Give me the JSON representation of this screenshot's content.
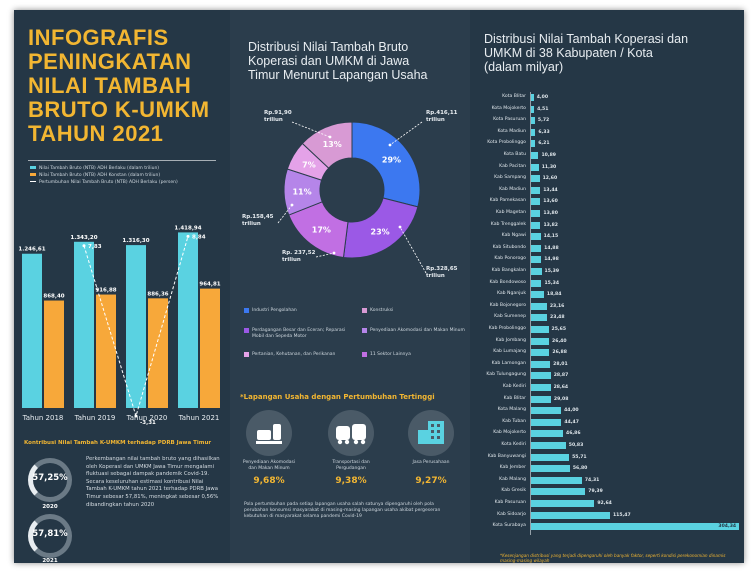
{
  "infographic": {
    "title_lines": [
      "INFOGRAFIS",
      "PENINGKATAN",
      "NILAI TAMBAH",
      "BRUTO K-UMKM",
      "TAHUN 2021"
    ],
    "colors": {
      "navy": "#253746",
      "gold": "#f2b632",
      "cyan": "#5ad2e1",
      "orange": "#f7a83a",
      "white": "#ffffff"
    }
  },
  "left_chart": {
    "legend": [
      "Nilai Tambah Bruto (NTB) ADH Berlaku (dalam triliun)",
      "Nilai Tambah Bruto (NTB) ADH Konstan (dalam triliun)",
      "Pertumbuhan Nilai Tambah Bruto (NTB) ADH Berlaku (persen)"
    ],
    "pdrb_title": "Kontribusi Nilai Tambah K-UMKM terhadap PDRB Jawa Timur",
    "rings": [
      {
        "value": "57,25%",
        "year": "2020"
      },
      {
        "value": "57,81%",
        "year": "2021"
      }
    ],
    "paragraph": "Perkembangan nilai tambah bruto yang dihasilkan oleh Koperasi dan UMKM Jawa Timur mengalami fluktuasi sebagai dampak pandemik Covid-19. Secara keseluruhan estimasi kontribusi Nilai Tambah K-UMKM tahun 2021 terhadap PDRB Jawa Timur sebesar 57,81%, meningkat sebesar 0,56% dibandingkan tahun 2020"
  },
  "donut": {
    "title_lines": [
      "Distribusi Nilai Tambah Bruto",
      "Koperasi dan UMKM di Jawa",
      "Timur Menurut Lapangan Usaha"
    ],
    "callouts": {
      "c1": [
        "Rp.91,90",
        "triliun"
      ],
      "c2": [
        "Rp.416,11",
        "triliun"
      ],
      "c3": [
        "Rp.158,45",
        "triliun"
      ],
      "c4": [
        "Rp. 237,52",
        "triliun"
      ],
      "c5": [
        "Rp.328,65",
        "triliun"
      ]
    },
    "legend": [
      "Industri Pengolahan",
      "Konstruksi",
      "Perdagangan Besar dan Eceran; Reparasi Mobil dan Sepeda Motor",
      "Penyediaan Akomodasi dan Makan Minum",
      "Pertanian, Kehutanan, dan Perikanan",
      "11 Sektor Lainnya"
    ],
    "sector_title": "*Lapangan Usaha dengan Pertumbuhan Tertinggi",
    "sectors": [
      {
        "name": "Penyediaan Akomodasi dan Makan Minum",
        "value": "9,68%"
      },
      {
        "name": "Transportasi dan Pergudangan",
        "value": "9,38%"
      },
      {
        "name": "Jasa Perusahaan",
        "value": "9,27%"
      }
    ],
    "note": "Pola pertumbuhan pada setiap lapangan usaha salah satunya dipengaruhi oleh pola perubahan konsumsi masyarakat di masing-masing lapangan usaha akibat pergeseran kebutuhan di masyarakat selama pandemi Covid-19"
  },
  "right_panel": {
    "title_lines": [
      "Distribusi Nilai Tambah Koperasi dan",
      "UMKM di 38 Kabupaten / Kota",
      "(dalam milyar)"
    ],
    "footnote": "*Kesenjangan distribusi yang terjadi dipengaruhi oleh banyak faktor, seperti kondisi perekonomian dinamis masing-masing wilayah"
  },
  "chart_data": [
    {
      "type": "bar",
      "title": "",
      "categories": [
        "Tahun 2018",
        "Tahun 2019",
        "Tahun 2020",
        "Tahun 2021"
      ],
      "series": [
        {
          "name": "Nilai Tambah Bruto (NTB) ADH Berlaku (dalam triliun)",
          "values": [
            1246.61,
            1343.2,
            1316.3,
            1418.94
          ],
          "labels": [
            "1.246,61",
            "1.343,20",
            "1.316,30",
            "1.418,94"
          ],
          "color": "#5ad2e1"
        },
        {
          "name": "Nilai Tambah Bruto (NTB) ADH Konstan (dalam triliun)",
          "values": [
            868.4,
            916.88,
            886.36,
            964.81
          ],
          "labels": [
            "868,40",
            "916,88",
            "886,36",
            "964,81"
          ],
          "color": "#f7a83a"
        }
      ],
      "line_series": {
        "name": "Pertumbuhan Nilai Tambah Bruto (NTB) ADH Berlaku (persen)",
        "labels": [
          "",
          "7,83",
          "-3,31",
          "8,84"
        ],
        "values": [
          null,
          7.83,
          -3.31,
          8.84
        ]
      },
      "ylim": [
        0,
        1600
      ]
    },
    {
      "type": "pie",
      "title": "Distribusi Nilai Tambah Bruto Koperasi dan UMKM di Jawa Timur Menurut Lapangan Usaha",
      "labels": [
        "Industri Pengolahan",
        "Konstruksi",
        "Perdagangan Besar dan Eceran; Reparasi Mobil dan Sepeda Motor",
        "Penyediaan Akomodasi dan Makan Minum",
        "Pertanian, Kehutanan, dan Perikanan",
        "11 Sektor Lainnya"
      ],
      "values": [
        29,
        23,
        17,
        11,
        7,
        13
      ],
      "value_labels": [
        "29%",
        "23%",
        "17%",
        "11%",
        "7%",
        "13%"
      ],
      "colors": [
        "#3c78f0",
        "#9b59e6",
        "#c16fe3",
        "#b585e9",
        "#e4a2e8",
        "#d89ad4"
      ],
      "donut": true
    },
    {
      "type": "bar",
      "orientation": "horizontal",
      "title": "Distribusi Nilai Tambah Koperasi dan UMKM di 38 Kabupaten / Kota (dalam milyar)",
      "categories": [
        "Kota Blitar",
        "Kota Mojokerto",
        "Kota Pasuruan",
        "Kota Madiun",
        "Kota Probolinggo",
        "Kota Batu",
        "Kab Pacitan",
        "Kab Sampang",
        "Kab Madiun",
        "Kab Pamekasan",
        "Kab Magetan",
        "Kab Trenggalek",
        "Kab Ngawi",
        "Kab Situbondo",
        "Kab Ponorogo",
        "Kab Bangkalan",
        "Kab Bondowoso",
        "Kab Nganjuk",
        "Kab Bojonegoro",
        "Kab Sumenep",
        "Kab Probolinggo",
        "Kab Jombang",
        "Kab Lumajang",
        "Kab Lamongan",
        "Kab Tulungagung",
        "Kab Kediri",
        "Kab Blitar",
        "Kota Malang",
        "Kab Tuban",
        "Kab Mojokerto",
        "Kota Kediri",
        "Kab Banyuwangi",
        "Kab Jember",
        "Kab Malang",
        "Kab Gresik",
        "Kab Pasuruan",
        "Kab Sidoarjo",
        "Kota Surabaya"
      ],
      "values": [
        4.0,
        4.51,
        5.72,
        6.33,
        6.21,
        10.89,
        11.3,
        12.6,
        13.44,
        13.6,
        13.8,
        13.82,
        14.15,
        14.88,
        14.98,
        15.39,
        15.34,
        18.84,
        23.16,
        23.48,
        25.65,
        26.4,
        26.88,
        28.01,
        28.87,
        28.64,
        29.08,
        44.0,
        44.47,
        46.86,
        50.83,
        55.71,
        56.8,
        74.31,
        79.39,
        92.64,
        115.47,
        304.34
      ],
      "value_labels": [
        "4,00",
        "4,51",
        "5,72",
        "6,33",
        "6,21",
        "10,89",
        "11,30",
        "12,60",
        "13,44",
        "13,60",
        "13,80",
        "13,82",
        "14,15",
        "14,88",
        "14,98",
        "15,39",
        "15,34",
        "18,84",
        "23,16",
        "23,48",
        "25,65",
        "26,40",
        "26,88",
        "28,01",
        "28,87",
        "28,64",
        "29,08",
        "44,00",
        "44,47",
        "46,86",
        "50,83",
        "55,71",
        "56,80",
        "74,31",
        "79,39",
        "92,64",
        "115,47",
        "304,34"
      ],
      "color": "#5ad2e1",
      "xlim": [
        0,
        310
      ]
    }
  ]
}
